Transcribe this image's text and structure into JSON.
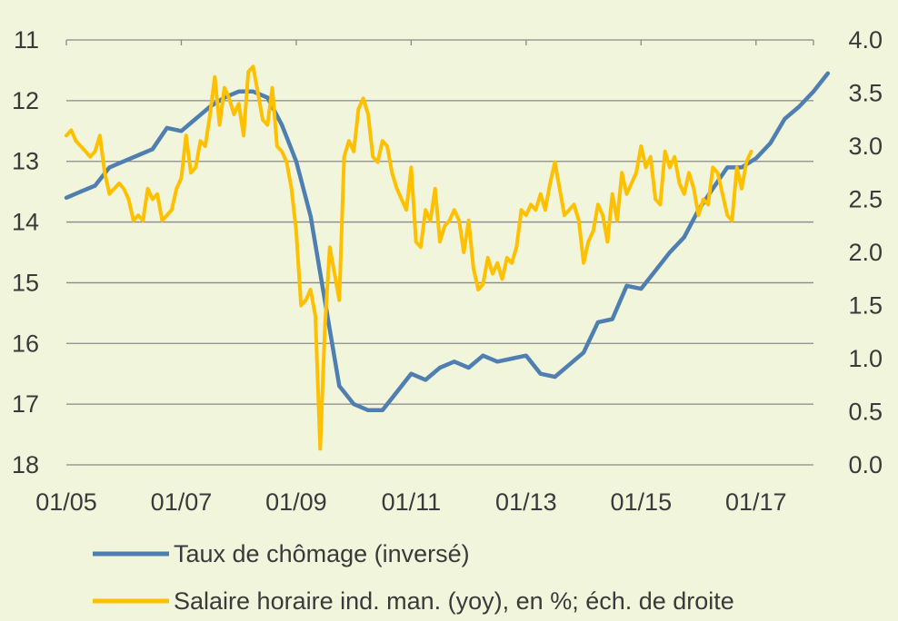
{
  "chart_data": {
    "type": "line",
    "title": "",
    "xlabel": "",
    "ylabel_left": "",
    "ylabel_right": "",
    "x_ticks": [
      "01/05",
      "01/07",
      "01/09",
      "01/11",
      "01/13",
      "01/15",
      "01/17"
    ],
    "x_range": [
      "2005-01",
      "2018-01"
    ],
    "y_left": {
      "range": [
        11,
        18
      ],
      "inverted": true,
      "ticks": [
        "11",
        "12",
        "13",
        "14",
        "15",
        "16",
        "17",
        "18"
      ]
    },
    "y_right": {
      "range": [
        0.0,
        4.0
      ],
      "ticks": [
        "0.0",
        "0.5",
        "1.0",
        "1.5",
        "2.0",
        "2.5",
        "3.0",
        "3.5",
        "4.0"
      ]
    },
    "grid": true,
    "legend_position": "bottom",
    "series": [
      {
        "name": "Taux de chômage (inversé)",
        "axis": "left",
        "color": "#4f7fb0",
        "points": [
          [
            "2005-01",
            13.6
          ],
          [
            "2005-04",
            13.5
          ],
          [
            "2005-07",
            13.4
          ],
          [
            "2005-10",
            13.1
          ],
          [
            "2006-01",
            13.0
          ],
          [
            "2006-04",
            12.9
          ],
          [
            "2006-07",
            12.8
          ],
          [
            "2006-10",
            12.45
          ],
          [
            "2007-01",
            12.5
          ],
          [
            "2007-04",
            12.3
          ],
          [
            "2007-07",
            12.1
          ],
          [
            "2007-10",
            11.95
          ],
          [
            "2008-01",
            11.85
          ],
          [
            "2008-04",
            11.85
          ],
          [
            "2008-07",
            11.95
          ],
          [
            "2008-10",
            12.4
          ],
          [
            "2009-01",
            13.0
          ],
          [
            "2009-04",
            13.9
          ],
          [
            "2009-07",
            15.3
          ],
          [
            "2009-10",
            16.7
          ],
          [
            "2010-01",
            17.0
          ],
          [
            "2010-04",
            17.1
          ],
          [
            "2010-07",
            17.1
          ],
          [
            "2010-10",
            16.8
          ],
          [
            "2011-01",
            16.5
          ],
          [
            "2011-04",
            16.6
          ],
          [
            "2011-07",
            16.4
          ],
          [
            "2011-10",
            16.3
          ],
          [
            "2012-01",
            16.4
          ],
          [
            "2012-04",
            16.2
          ],
          [
            "2012-07",
            16.3
          ],
          [
            "2012-10",
            16.25
          ],
          [
            "2013-01",
            16.2
          ],
          [
            "2013-04",
            16.5
          ],
          [
            "2013-07",
            16.55
          ],
          [
            "2013-10",
            16.35
          ],
          [
            "2014-01",
            16.15
          ],
          [
            "2014-04",
            15.65
          ],
          [
            "2014-07",
            15.6
          ],
          [
            "2014-10",
            15.05
          ],
          [
            "2015-01",
            15.1
          ],
          [
            "2015-04",
            14.8
          ],
          [
            "2015-07",
            14.5
          ],
          [
            "2015-10",
            14.25
          ],
          [
            "2016-01",
            13.8
          ],
          [
            "2016-04",
            13.45
          ],
          [
            "2016-07",
            13.1
          ],
          [
            "2016-10",
            13.1
          ],
          [
            "2017-01",
            12.95
          ],
          [
            "2017-04",
            12.7
          ],
          [
            "2017-07",
            12.3
          ],
          [
            "2017-10",
            12.1
          ],
          [
            "2018-01",
            11.85
          ],
          [
            "2018-04",
            11.55
          ]
        ]
      },
      {
        "name": "Salaire horaire ind. man. (yoy), en %; éch. de droite",
        "axis": "right",
        "color": "#ffc000",
        "points": [
          [
            "2005-01",
            3.1
          ],
          [
            "2005-02",
            3.15
          ],
          [
            "2005-03",
            3.05
          ],
          [
            "2005-04",
            3.0
          ],
          [
            "2005-05",
            2.95
          ],
          [
            "2005-06",
            2.9
          ],
          [
            "2005-07",
            2.95
          ],
          [
            "2005-08",
            3.1
          ],
          [
            "2005-09",
            2.75
          ],
          [
            "2005-10",
            2.55
          ],
          [
            "2005-11",
            2.6
          ],
          [
            "2005-12",
            2.65
          ],
          [
            "2006-01",
            2.6
          ],
          [
            "2006-02",
            2.5
          ],
          [
            "2006-03",
            2.3
          ],
          [
            "2006-04",
            2.35
          ],
          [
            "2006-05",
            2.3
          ],
          [
            "2006-06",
            2.6
          ],
          [
            "2006-07",
            2.5
          ],
          [
            "2006-08",
            2.55
          ],
          [
            "2006-09",
            2.3
          ],
          [
            "2006-10",
            2.35
          ],
          [
            "2006-11",
            2.4
          ],
          [
            "2006-12",
            2.6
          ],
          [
            "2007-01",
            2.7
          ],
          [
            "2007-02",
            3.1
          ],
          [
            "2007-03",
            2.75
          ],
          [
            "2007-04",
            2.8
          ],
          [
            "2007-05",
            3.05
          ],
          [
            "2007-06",
            3.0
          ],
          [
            "2007-07",
            3.3
          ],
          [
            "2007-08",
            3.65
          ],
          [
            "2007-09",
            3.2
          ],
          [
            "2007-10",
            3.55
          ],
          [
            "2007-11",
            3.45
          ],
          [
            "2007-12",
            3.3
          ],
          [
            "2008-01",
            3.4
          ],
          [
            "2008-02",
            3.1
          ],
          [
            "2008-03",
            3.7
          ],
          [
            "2008-04",
            3.75
          ],
          [
            "2008-05",
            3.5
          ],
          [
            "2008-06",
            3.25
          ],
          [
            "2008-07",
            3.2
          ],
          [
            "2008-08",
            3.55
          ],
          [
            "2008-09",
            3.0
          ],
          [
            "2008-10",
            2.95
          ],
          [
            "2008-11",
            2.85
          ],
          [
            "2008-12",
            2.6
          ],
          [
            "2009-01",
            2.2
          ],
          [
            "2009-02",
            1.5
          ],
          [
            "2009-03",
            1.55
          ],
          [
            "2009-04",
            1.65
          ],
          [
            "2009-05",
            1.4
          ],
          [
            "2009-06",
            0.15
          ],
          [
            "2009-07",
            1.3
          ],
          [
            "2009-08",
            2.05
          ],
          [
            "2009-09",
            1.8
          ],
          [
            "2009-10",
            1.55
          ],
          [
            "2009-11",
            2.9
          ],
          [
            "2009-12",
            3.05
          ],
          [
            "2010-01",
            2.95
          ],
          [
            "2010-02",
            3.35
          ],
          [
            "2010-03",
            3.45
          ],
          [
            "2010-04",
            3.3
          ],
          [
            "2010-05",
            2.9
          ],
          [
            "2010-06",
            2.85
          ],
          [
            "2010-07",
            3.05
          ],
          [
            "2010-08",
            3.0
          ],
          [
            "2010-09",
            2.75
          ],
          [
            "2010-10",
            2.6
          ],
          [
            "2010-11",
            2.5
          ],
          [
            "2010-12",
            2.4
          ],
          [
            "2011-01",
            2.8
          ],
          [
            "2011-02",
            2.1
          ],
          [
            "2011-03",
            2.05
          ],
          [
            "2011-04",
            2.4
          ],
          [
            "2011-05",
            2.3
          ],
          [
            "2011-06",
            2.6
          ],
          [
            "2011-07",
            2.1
          ],
          [
            "2011-08",
            2.25
          ],
          [
            "2011-09",
            2.3
          ],
          [
            "2011-10",
            2.4
          ],
          [
            "2011-11",
            2.3
          ],
          [
            "2011-12",
            2.0
          ],
          [
            "2012-01",
            2.3
          ],
          [
            "2012-02",
            1.85
          ],
          [
            "2012-03",
            1.65
          ],
          [
            "2012-04",
            1.7
          ],
          [
            "2012-05",
            1.95
          ],
          [
            "2012-06",
            1.8
          ],
          [
            "2012-07",
            1.9
          ],
          [
            "2012-08",
            1.75
          ],
          [
            "2012-09",
            1.95
          ],
          [
            "2012-10",
            1.9
          ],
          [
            "2012-11",
            2.05
          ],
          [
            "2012-12",
            2.4
          ],
          [
            "2013-01",
            2.35
          ],
          [
            "2013-02",
            2.45
          ],
          [
            "2013-03",
            2.4
          ],
          [
            "2013-04",
            2.55
          ],
          [
            "2013-05",
            2.4
          ],
          [
            "2013-06",
            2.65
          ],
          [
            "2013-07",
            2.85
          ],
          [
            "2013-08",
            2.6
          ],
          [
            "2013-09",
            2.35
          ],
          [
            "2013-10",
            2.4
          ],
          [
            "2013-11",
            2.45
          ],
          [
            "2013-12",
            2.3
          ],
          [
            "2014-01",
            1.9
          ],
          [
            "2014-02",
            2.1
          ],
          [
            "2014-03",
            2.2
          ],
          [
            "2014-04",
            2.45
          ],
          [
            "2014-05",
            2.35
          ],
          [
            "2014-06",
            2.1
          ],
          [
            "2014-07",
            2.55
          ],
          [
            "2014-08",
            2.3
          ],
          [
            "2014-09",
            2.75
          ],
          [
            "2014-10",
            2.55
          ],
          [
            "2014-11",
            2.65
          ],
          [
            "2014-12",
            2.75
          ],
          [
            "2015-01",
            3.0
          ],
          [
            "2015-02",
            2.8
          ],
          [
            "2015-03",
            2.9
          ],
          [
            "2015-04",
            2.5
          ],
          [
            "2015-05",
            2.45
          ],
          [
            "2015-06",
            2.95
          ],
          [
            "2015-07",
            2.8
          ],
          [
            "2015-08",
            2.9
          ],
          [
            "2015-09",
            2.65
          ],
          [
            "2015-10",
            2.55
          ],
          [
            "2015-11",
            2.75
          ],
          [
            "2015-12",
            2.6
          ],
          [
            "2016-01",
            2.35
          ],
          [
            "2016-02",
            2.5
          ],
          [
            "2016-03",
            2.45
          ],
          [
            "2016-04",
            2.8
          ],
          [
            "2016-05",
            2.75
          ],
          [
            "2016-06",
            2.55
          ],
          [
            "2016-07",
            2.35
          ],
          [
            "2016-08",
            2.3
          ],
          [
            "2016-09",
            2.8
          ],
          [
            "2016-10",
            2.6
          ],
          [
            "2016-11",
            2.85
          ],
          [
            "2016-12",
            2.95
          ]
        ]
      }
    ]
  }
}
